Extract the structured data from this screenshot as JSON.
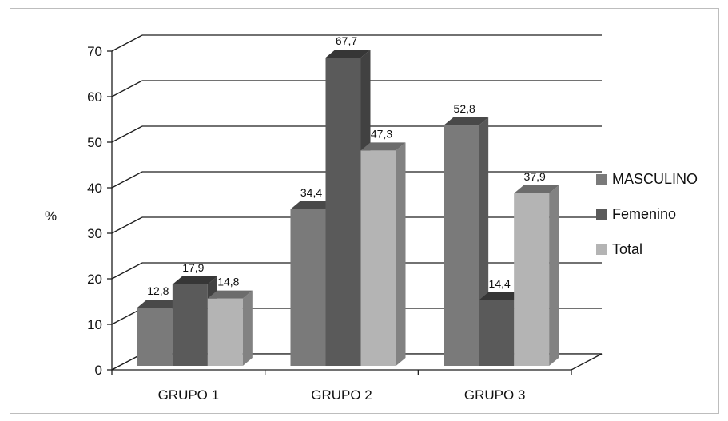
{
  "chart_data": {
    "type": "bar",
    "title": "",
    "xlabel": "",
    "ylabel": "%",
    "ylim": [
      0,
      70
    ],
    "yticks": [
      0,
      10,
      20,
      30,
      40,
      50,
      60,
      70
    ],
    "categories": [
      "GRUPO 1",
      "GRUPO 2",
      "GRUPO 3"
    ],
    "series": [
      {
        "name": "MASCULINO",
        "values": [
          12.8,
          34.4,
          52.8
        ],
        "labels": [
          "12,8",
          "34,4",
          "52,8"
        ],
        "color": "#7a7a7a"
      },
      {
        "name": "Femenino",
        "values": [
          17.9,
          67.7,
          14.4
        ],
        "labels": [
          "17,9",
          "67,7",
          "14,4"
        ],
        "color": "#5a5a5a"
      },
      {
        "name": "Total",
        "values": [
          14.8,
          47.3,
          37.9
        ],
        "labels": [
          "14,8",
          "47,3",
          "37,9"
        ],
        "color": "#b4b4b4"
      }
    ],
    "grid": true,
    "legend_position": "right",
    "style": "3d-clustered-column"
  }
}
